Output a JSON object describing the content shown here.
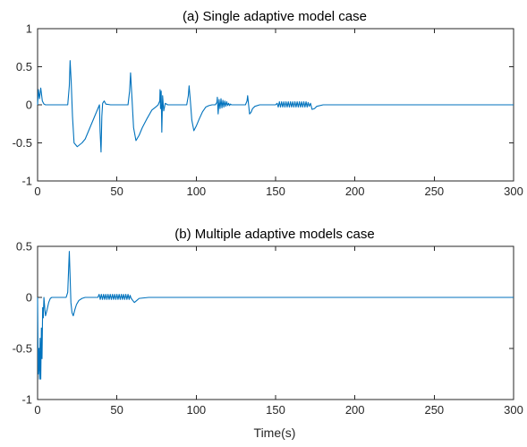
{
  "chart_data": [
    {
      "type": "line",
      "title": "(a) Single adaptive model case",
      "xlabel": "",
      "ylabel": "",
      "xlim": [
        0,
        300
      ],
      "ylim": [
        -1,
        1
      ],
      "xticks": [
        0,
        50,
        100,
        150,
        200,
        250,
        300
      ],
      "yticks": [
        -1,
        -0.5,
        0,
        0.5,
        1
      ],
      "xtick_labels": [
        "0",
        "50",
        "100",
        "150",
        "200",
        "250",
        "300"
      ],
      "ytick_labels": [
        "-1",
        "-0.5",
        "0",
        "0.5",
        "1"
      ],
      "grid": false,
      "line_color": "#0072BD",
      "series": [
        {
          "x": [
            0,
            0.5,
            1.2,
            2,
            3,
            4,
            5,
            8,
            12,
            16,
            19,
            20,
            20.5,
            21.2,
            22,
            23,
            25,
            28,
            30,
            33,
            36,
            38,
            39,
            39.4,
            40,
            40.5,
            41,
            42,
            43,
            46,
            50,
            54,
            57,
            58,
            58.6,
            59.4,
            60.5,
            62,
            64,
            66,
            69,
            72,
            75,
            76,
            77,
            77.2,
            77.5,
            77.9,
            78.3,
            78.8,
            79.5,
            80.5,
            82,
            85,
            88,
            91,
            94,
            95,
            95.5,
            96.3,
            97.2,
            98.5,
            100,
            102,
            104,
            106,
            108,
            110,
            112,
            113,
            113.3,
            113.8,
            114.4,
            115,
            115.6,
            116.2,
            116.8,
            117.4,
            118,
            118.6,
            119.2,
            119.8,
            120.4,
            121,
            121.6,
            122.2,
            123,
            125,
            128,
            131,
            132,
            132.4,
            133,
            133.6,
            134.5,
            135.5,
            137,
            140,
            145,
            150,
            151,
            151.7,
            152.4,
            153.1,
            153.8,
            154.5,
            155.2,
            155.9,
            156.6,
            157.3,
            158,
            158.7,
            159.4,
            160.1,
            160.8,
            161.5,
            162.2,
            162.9,
            163.6,
            164.3,
            165,
            165.7,
            166.4,
            167.1,
            167.8,
            168.5,
            169.2,
            169.9,
            170.5,
            171.2,
            172,
            173,
            174.5,
            176,
            180,
            200,
            220,
            250,
            280,
            300
          ],
          "y": [
            0.0,
            0.2,
            0.08,
            0.22,
            0.05,
            0.01,
            0.0,
            0.0,
            0.0,
            0.0,
            0.0,
            0.25,
            0.58,
            0.3,
            -0.15,
            -0.5,
            -0.55,
            -0.5,
            -0.45,
            -0.3,
            -0.15,
            -0.05,
            0.0,
            -0.35,
            -0.62,
            -0.15,
            0.02,
            0.05,
            0.01,
            0.0,
            0.0,
            0.0,
            0.0,
            0.18,
            0.42,
            0.12,
            -0.3,
            -0.47,
            -0.4,
            -0.3,
            -0.18,
            -0.07,
            -0.02,
            0.0,
            0.05,
            0.2,
            -0.05,
            0.18,
            -0.36,
            0.12,
            -0.08,
            0.02,
            0.0,
            0.0,
            0.0,
            0.0,
            0.0,
            0.12,
            0.25,
            0.05,
            -0.2,
            -0.34,
            -0.28,
            -0.18,
            -0.09,
            -0.03,
            -0.01,
            0.0,
            0.0,
            0.03,
            0.1,
            -0.12,
            0.07,
            -0.05,
            0.08,
            -0.04,
            0.06,
            -0.03,
            0.05,
            -0.02,
            0.04,
            -0.01,
            0.02,
            -0.01,
            0.01,
            0.0,
            0.0,
            0.0,
            0.0,
            0.0,
            0.05,
            0.12,
            0.0,
            -0.12,
            -0.1,
            -0.05,
            -0.02,
            0.0,
            0.0,
            0.0,
            0.02,
            -0.03,
            0.04,
            -0.03,
            0.04,
            -0.03,
            0.04,
            -0.03,
            0.04,
            -0.03,
            0.04,
            -0.03,
            0.04,
            -0.03,
            0.04,
            -0.03,
            0.04,
            -0.03,
            0.04,
            -0.03,
            0.04,
            -0.03,
            0.04,
            -0.03,
            0.04,
            -0.03,
            0.04,
            -0.03,
            0.03,
            -0.02,
            0.02,
            -0.06,
            -0.05,
            -0.02,
            0.0,
            0.0,
            0.0,
            0.0,
            0.0,
            0.0
          ]
        }
      ]
    },
    {
      "type": "line",
      "title": "(b) Multiple adaptive models case",
      "xlabel": "Time(s)",
      "ylabel": "",
      "xlim": [
        0,
        300
      ],
      "ylim": [
        -1,
        0.5
      ],
      "xticks": [
        0,
        50,
        100,
        150,
        200,
        250,
        300
      ],
      "yticks": [
        -1,
        -0.5,
        0,
        0.5
      ],
      "xtick_labels": [
        "0",
        "50",
        "100",
        "150",
        "200",
        "250",
        "300"
      ],
      "ytick_labels": [
        "-1",
        "-0.5",
        "0",
        "0.5"
      ],
      "grid": false,
      "line_color": "#0072BD",
      "series": [
        {
          "x": [
            0,
            0.4,
            0.8,
            1.2,
            1.6,
            2.0,
            2.4,
            2.8,
            3.2,
            3.6,
            4.0,
            4.5,
            5,
            6,
            7,
            8,
            9,
            10,
            12,
            15,
            18,
            19,
            19.5,
            20,
            20.5,
            21,
            21.7,
            22.5,
            23.5,
            24.5,
            26,
            28,
            30,
            33,
            36,
            38,
            38.8,
            39.5,
            40.2,
            40.9,
            41.6,
            42.3,
            43,
            43.7,
            44.4,
            45.1,
            45.8,
            46.5,
            47.2,
            47.9,
            48.6,
            49.3,
            50,
            50.7,
            51.4,
            52.1,
            52.8,
            53.5,
            54.2,
            54.9,
            55.6,
            56.3,
            57,
            57.7,
            58.3,
            59,
            60,
            61,
            62.5,
            64,
            70,
            100,
            150,
            200,
            250,
            300
          ],
          "y": [
            0.0,
            -0.75,
            -0.5,
            -0.8,
            -0.4,
            -0.8,
            -0.3,
            -0.6,
            -0.1,
            -0.2,
            0.0,
            -0.1,
            -0.18,
            -0.12,
            -0.05,
            -0.01,
            0.0,
            0.0,
            0.0,
            0.0,
            0.0,
            0.05,
            0.25,
            0.45,
            0.2,
            -0.05,
            -0.15,
            -0.18,
            -0.12,
            -0.07,
            -0.03,
            -0.01,
            0.0,
            0.0,
            0.0,
            0.0,
            0.03,
            -0.02,
            0.03,
            -0.02,
            0.03,
            -0.02,
            0.03,
            -0.02,
            0.03,
            -0.02,
            0.03,
            -0.02,
            0.03,
            -0.02,
            0.03,
            -0.02,
            0.03,
            -0.02,
            0.03,
            -0.02,
            0.03,
            -0.02,
            0.03,
            -0.02,
            0.03,
            -0.02,
            0.03,
            -0.02,
            0.02,
            -0.01,
            -0.03,
            -0.05,
            -0.03,
            -0.01,
            0.0,
            0.0,
            0.0,
            0.0,
            0.0,
            0.0
          ]
        }
      ]
    }
  ]
}
